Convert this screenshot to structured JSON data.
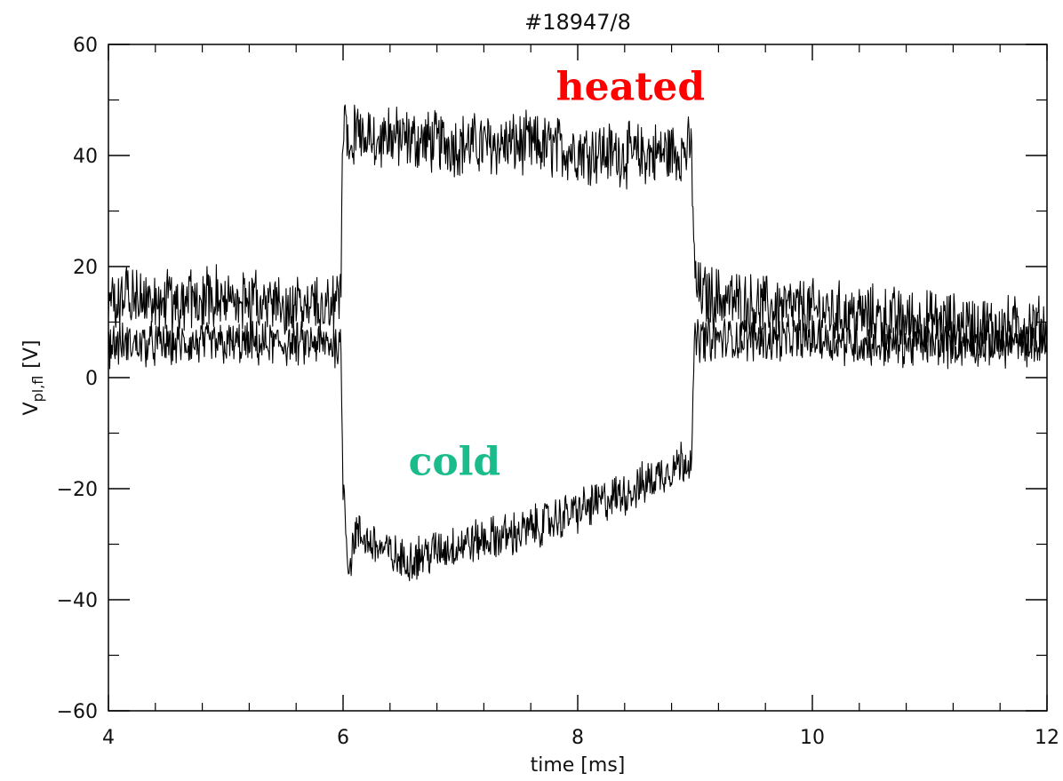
{
  "chart_data": {
    "type": "line",
    "title": "#18947/8",
    "xlabel": "time [ms]",
    "ylabel": {
      "main": "V",
      "subscript": "pl,fl",
      "unit": "[V]"
    },
    "xlim": [
      4,
      12
    ],
    "ylim": [
      -60,
      60
    ],
    "x_ticks": [
      4,
      6,
      8,
      10,
      12
    ],
    "y_ticks": [
      60,
      40,
      20,
      0,
      -20,
      -40,
      -60
    ],
    "x_tick_labels": [
      "4",
      "6",
      "8",
      "10",
      "12"
    ],
    "y_tick_labels": [
      "60",
      "40",
      "20",
      "0",
      "−20",
      "−40",
      "−60"
    ],
    "x_minor_step": 0.4,
    "y_minor_step": 10,
    "grid": false,
    "line_color": "#000000",
    "series": [
      {
        "x": [
          4.0,
          4.5,
          5.0,
          5.5,
          5.98,
          6.0,
          6.05,
          6.5,
          7.0,
          7.5,
          8.0,
          8.5,
          8.97,
          9.0,
          9.05,
          9.5,
          10.0,
          10.5,
          11.0,
          11.5,
          12.0
        ],
        "y": [
          15,
          14,
          14,
          13,
          13,
          46,
          44,
          43,
          42,
          42,
          41,
          40,
          41,
          17,
          15,
          13,
          12,
          11,
          10,
          9,
          9
        ],
        "noise": 5
      },
      {
        "x": [
          4.0,
          4.5,
          5.0,
          5.5,
          5.98,
          6.0,
          6.05,
          6.1,
          6.5,
          7.0,
          7.5,
          8.0,
          8.5,
          8.97,
          9.0,
          9.05,
          9.5,
          10.0,
          10.5,
          11.0,
          11.5,
          12.0
        ],
        "y": [
          6,
          6,
          6,
          6,
          6,
          -18,
          -35,
          -28,
          -33,
          -30,
          -28,
          -24,
          -20,
          -14,
          7,
          7,
          7,
          7,
          6,
          6,
          6,
          6
        ],
        "noise": 3.5
      }
    ],
    "annotations": [
      {
        "text": "heated",
        "x": 8.45,
        "y": 50,
        "color": "#ff0000"
      },
      {
        "text": "cold",
        "x": 6.95,
        "y": -17.5,
        "color": "#1abc8c"
      }
    ]
  }
}
